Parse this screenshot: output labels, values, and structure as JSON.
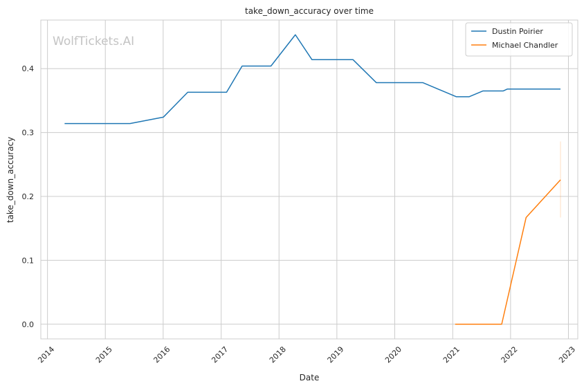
{
  "chart_data": {
    "type": "line",
    "title": "take_down_accuracy over time",
    "xlabel": "Date",
    "ylabel": "take_down_accuracy",
    "watermark": "WolfTickets.AI",
    "xlim": [
      "2013-11-20",
      "2023-03-01"
    ],
    "ylim": [
      -0.023,
      0.476
    ],
    "x_ticks": [
      "2014-01-01",
      "2015-01-01",
      "2016-01-01",
      "2017-01-01",
      "2018-01-01",
      "2019-01-01",
      "2020-01-01",
      "2021-01-01",
      "2022-01-01",
      "2023-01-01"
    ],
    "x_tick_labels": [
      "2014",
      "2015",
      "2016",
      "2017",
      "2018",
      "2019",
      "2020",
      "2021",
      "2022",
      "2023"
    ],
    "y_ticks": [
      0.0,
      0.1,
      0.2,
      0.3,
      0.4
    ],
    "y_tick_labels": [
      "0.0",
      "0.1",
      "0.2",
      "0.3",
      "0.4"
    ],
    "grid": true,
    "legend_position": "top-right",
    "series": [
      {
        "name": "Dustin Poirier",
        "color": "#1f77b4",
        "points": [
          [
            "2014-04-19",
            0.314
          ],
          [
            "2015-06-06",
            0.314
          ],
          [
            "2016-01-02",
            0.324
          ],
          [
            "2016-06-04",
            0.363
          ],
          [
            "2017-02-04",
            0.363
          ],
          [
            "2017-05-13",
            0.404
          ],
          [
            "2017-11-11",
            0.404
          ],
          [
            "2018-04-14",
            0.453
          ],
          [
            "2018-07-28",
            0.414
          ],
          [
            "2019-04-13",
            0.414
          ],
          [
            "2019-09-07",
            0.378
          ],
          [
            "2020-06-27",
            0.378
          ],
          [
            "2021-01-23",
            0.356
          ],
          [
            "2021-04-15",
            0.356
          ],
          [
            "2021-07-10",
            0.365
          ],
          [
            "2021-11-15",
            0.365
          ],
          [
            "2021-12-11",
            0.368
          ],
          [
            "2022-11-12",
            0.368
          ]
        ]
      },
      {
        "name": "Michael Chandler",
        "color": "#ff7f0e",
        "points": [
          [
            "2021-01-16",
            0.0
          ],
          [
            "2021-05-15",
            0.0
          ],
          [
            "2021-11-06",
            0.0
          ],
          [
            "2022-04-09",
            0.167
          ],
          [
            "2022-11-12",
            0.226
          ]
        ],
        "error_band": {
          "x": "2022-11-12",
          "low": 0.167,
          "high": 0.286
        }
      }
    ]
  }
}
